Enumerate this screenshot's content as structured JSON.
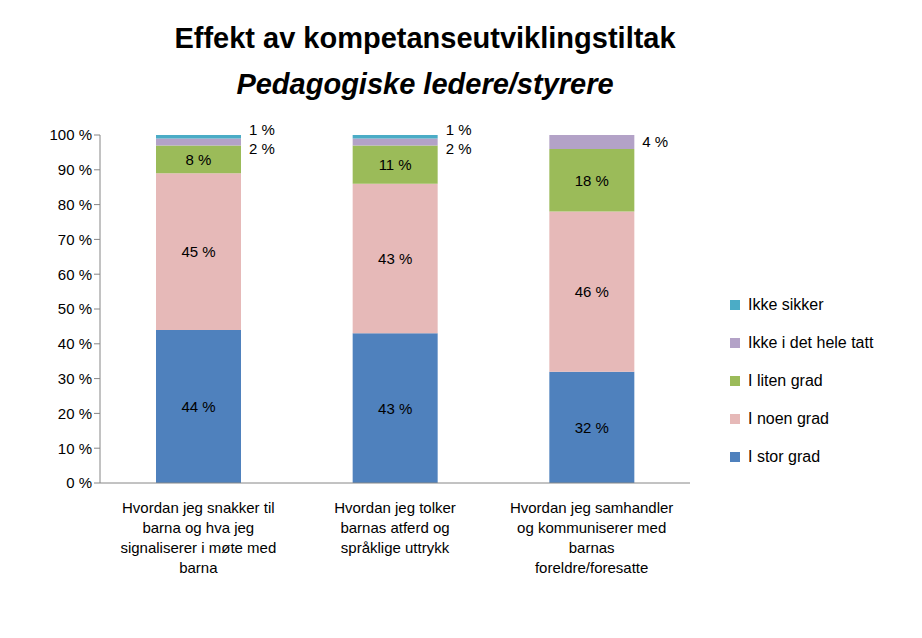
{
  "chart_data": {
    "type": "bar",
    "title": "Effekt av kompetanseutviklingstiltak",
    "subtitle": "Pedagogiske ledere/styrere",
    "categories": [
      "Hvordan jeg snakker til barna og hva jeg signaliserer i møte med barna",
      "Hvordan jeg tolker barnas atferd og språklige uttrykk",
      "Hvordan jeg samhandler og kommuniserer med barnas foreldre/foresatte"
    ],
    "series": [
      {
        "name": "I stor grad",
        "color": "#4f81bd",
        "values": [
          44,
          43,
          32
        ],
        "value_labels": [
          "44 %",
          "43 %",
          "32 %"
        ]
      },
      {
        "name": "I noen grad",
        "color": "#e6b9b8",
        "values": [
          45,
          43,
          46
        ],
        "value_labels": [
          "45 %",
          "43 %",
          "46 %"
        ]
      },
      {
        "name": "I liten grad",
        "color": "#9bbb59",
        "values": [
          8,
          11,
          18
        ],
        "value_labels": [
          "8 %",
          "11 %",
          "18 %"
        ]
      },
      {
        "name": "Ikke i det hele tatt",
        "color": "#b3a2c7",
        "values": [
          2,
          2,
          4
        ],
        "value_labels": [
          "2 %",
          "2 %",
          "4 %"
        ]
      },
      {
        "name": "Ikke sikker",
        "color": "#4bacc6",
        "values": [
          1,
          1,
          null
        ],
        "value_labels": [
          "1 %",
          "1 %",
          null
        ]
      }
    ],
    "ylim": [
      0,
      100
    ],
    "yticks": [
      {
        "value": 0,
        "label": "0 %"
      },
      {
        "value": 10,
        "label": "10 %"
      },
      {
        "value": 20,
        "label": "20 %"
      },
      {
        "value": 30,
        "label": "30 %"
      },
      {
        "value": 40,
        "label": "40 %"
      },
      {
        "value": 50,
        "label": "50 %"
      },
      {
        "value": 60,
        "label": "60 %"
      },
      {
        "value": 70,
        "label": "70 %"
      },
      {
        "value": 80,
        "label": "80 %"
      },
      {
        "value": 90,
        "label": "90 %"
      },
      {
        "value": 100,
        "label": "100 %"
      }
    ],
    "stacked": true,
    "data_labels": true,
    "grid": false,
    "legend": "right"
  }
}
